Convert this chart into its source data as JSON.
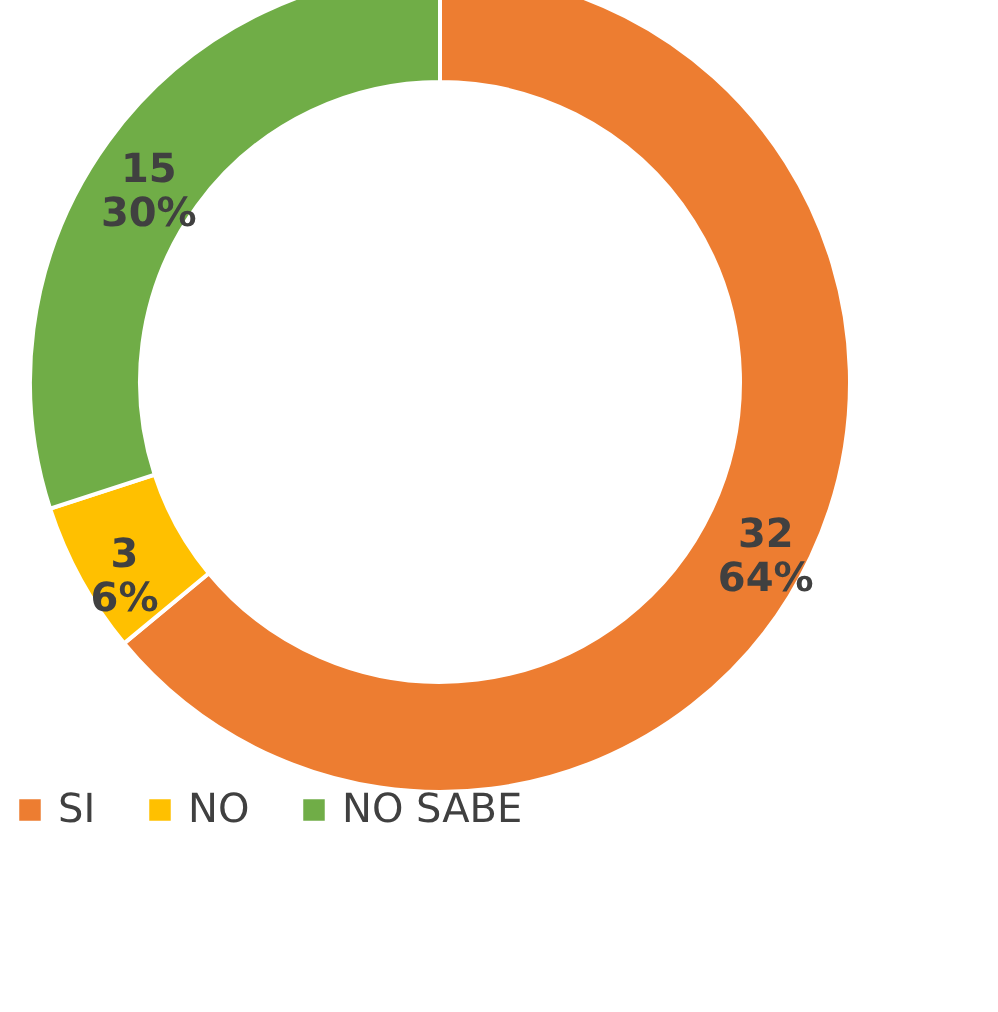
{
  "chart_data": {
    "type": "donut",
    "categories": [
      "SI",
      "NO",
      "NO SABE"
    ],
    "values": [
      32,
      3,
      15
    ],
    "colors": [
      "#ed7d31",
      "#ffc000",
      "#70ad47"
    ],
    "value_labels": [
      "32\n64%",
      "3\n6%",
      "15\n30%"
    ],
    "legend": "bottom"
  }
}
